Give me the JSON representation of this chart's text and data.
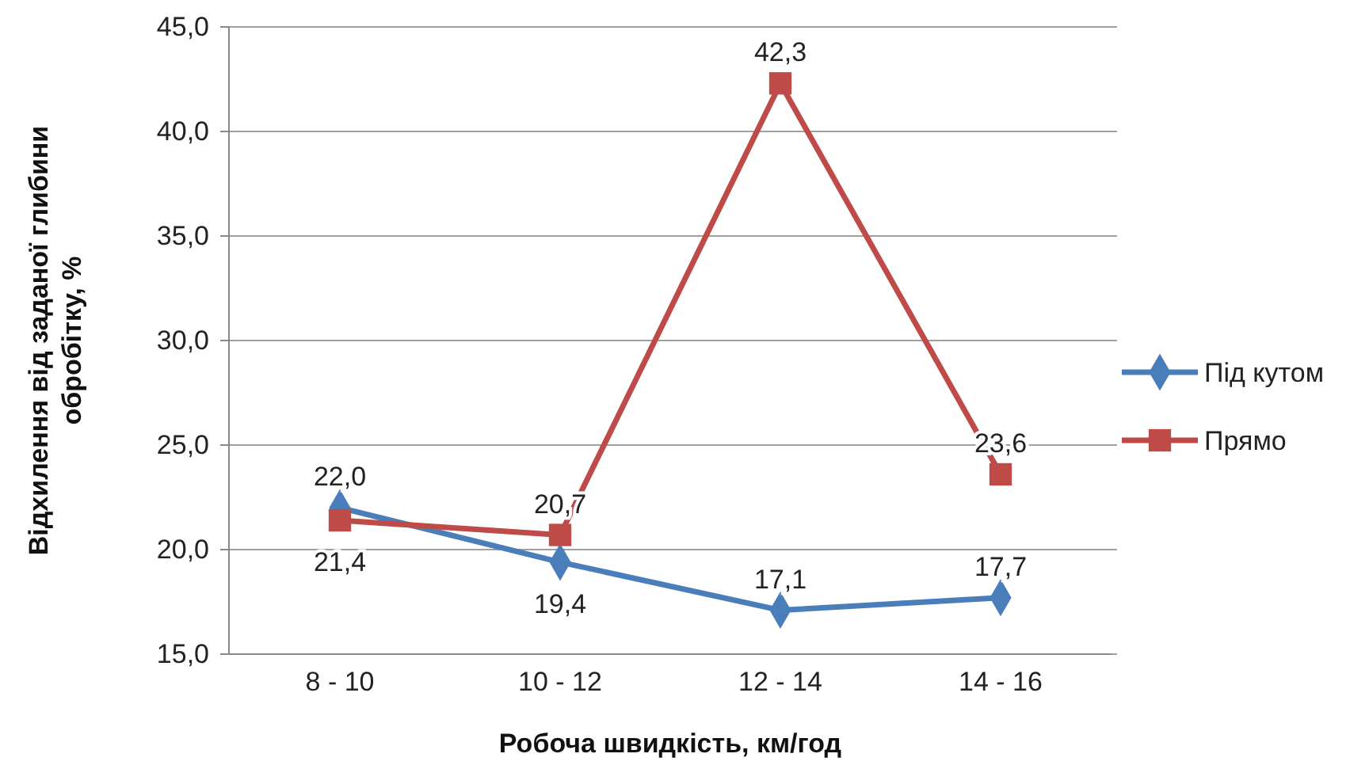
{
  "chart_data": {
    "type": "line",
    "xlabel": "Робоча швидкість, км/год",
    "ylabel": "Відхилення від заданої глибини обробітку, %",
    "categories": [
      "8 - 10",
      "10 - 12",
      "12 - 14",
      "14 - 16"
    ],
    "series": [
      {
        "name": "Під кутом",
        "color": "#4a7ebb",
        "marker": "diamond",
        "values": [
          22.0,
          19.4,
          17.1,
          17.7
        ],
        "value_labels": [
          "22,0",
          "19,4",
          "17,1",
          "17,7"
        ]
      },
      {
        "name": "Прямо",
        "color": "#be4b48",
        "marker": "square",
        "values": [
          21.4,
          20.7,
          42.3,
          23.6
        ],
        "value_labels": [
          "21,4",
          "20,7",
          "42,3",
          "23,6"
        ]
      }
    ],
    "ylim": [
      15,
      45
    ],
    "yticks": [
      {
        "value": 15,
        "label": "15,0"
      },
      {
        "value": 20,
        "label": "20,0"
      },
      {
        "value": 25,
        "label": "25,0"
      },
      {
        "value": 30,
        "label": "30,0"
      },
      {
        "value": 35,
        "label": "35,0"
      },
      {
        "value": 40,
        "label": "40,0"
      },
      {
        "value": 45,
        "label": "45,0"
      }
    ],
    "grid": "y",
    "legend": "right"
  }
}
